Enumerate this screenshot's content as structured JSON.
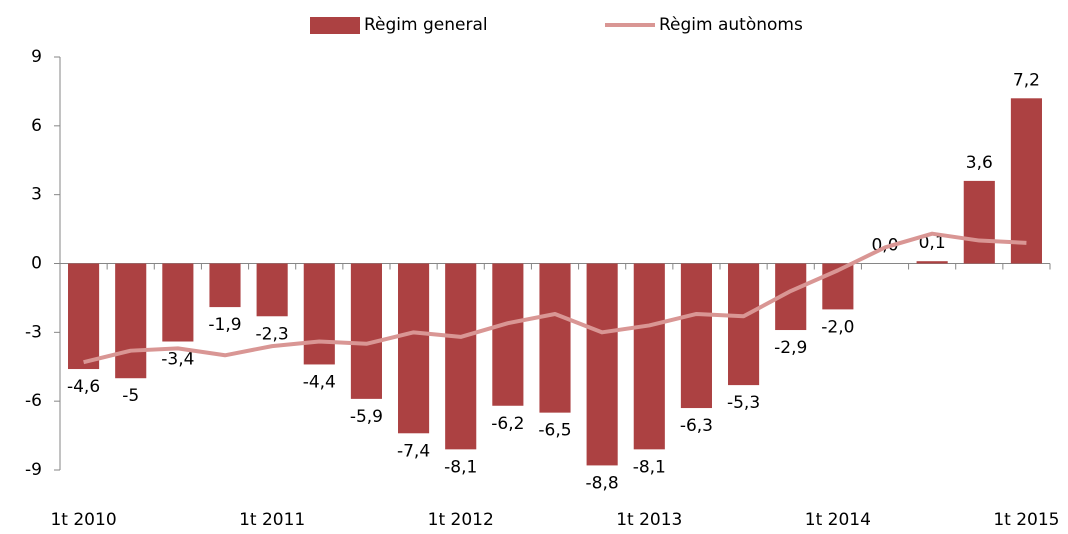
{
  "chart_data": {
    "type": "bar",
    "categories": [
      "1t 2010",
      null,
      null,
      null,
      "1t 2011",
      null,
      null,
      null,
      "1t 2012",
      null,
      null,
      null,
      "1t 2013",
      null,
      null,
      null,
      "1t 2014",
      null,
      null,
      null,
      "1t 2015"
    ],
    "series": [
      {
        "name": "Règim general",
        "type": "bar",
        "color": "#ac4142",
        "values": [
          -4.6,
          -5,
          -3.4,
          -1.9,
          -2.3,
          -4.4,
          -5.9,
          -7.4,
          -8.1,
          -6.2,
          -6.5,
          -8.8,
          -8.1,
          -6.3,
          -5.3,
          -2.9,
          -2.0,
          0.0,
          0.1,
          3.6,
          7.2
        ],
        "value_labels": [
          "-4,6",
          "-5",
          "-3,4",
          "-1,9",
          "-2,3",
          "-4,4",
          "-5,9",
          "-7,4",
          "-8,1",
          "-6,2",
          "-6,5",
          "-8,8",
          "-8,1",
          "-6,3",
          "-5,3",
          "-2,9",
          "-2,0",
          "0,0",
          "0,1",
          "3,6",
          "7,2"
        ]
      },
      {
        "name": "Règim autònoms",
        "type": "line",
        "color": "#d99694",
        "values": [
          -4.3,
          -3.8,
          -3.7,
          -4.0,
          -3.6,
          -3.4,
          -3.5,
          -3.0,
          -3.2,
          -2.6,
          -2.2,
          -3.0,
          -2.7,
          -2.2,
          -2.3,
          -1.2,
          -0.3,
          0.7,
          1.3,
          1.0,
          0.9
        ]
      }
    ],
    "ylim": [
      -9,
      9
    ],
    "yticks": [
      -9,
      -6,
      -3,
      0,
      3,
      6,
      9
    ],
    "legend": "top"
  }
}
